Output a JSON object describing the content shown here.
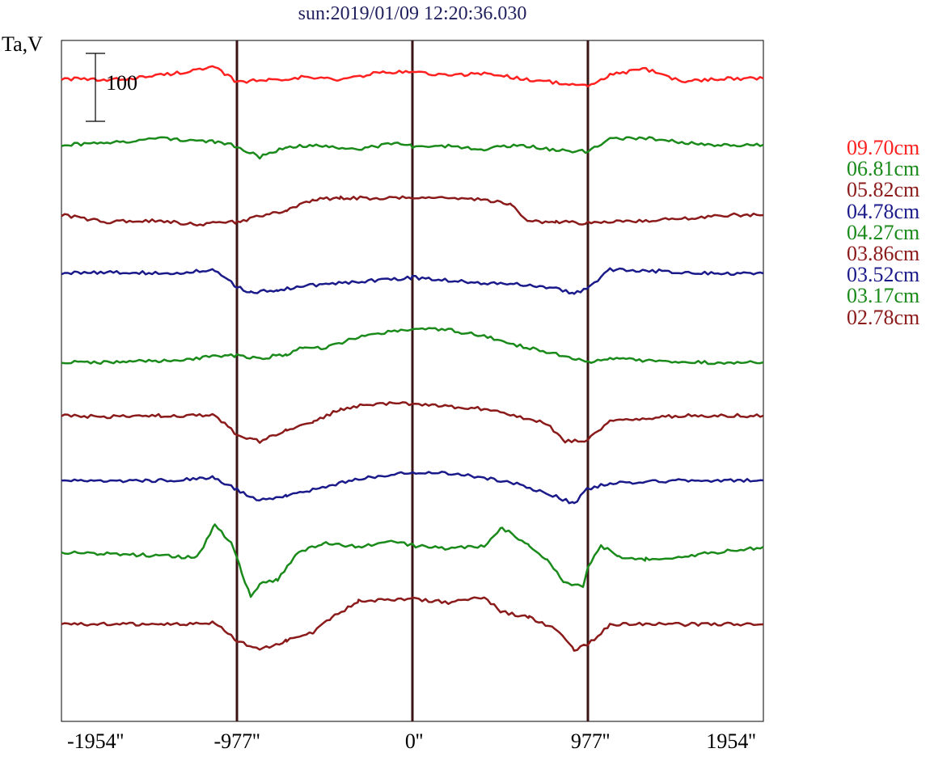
{
  "title": "sun:2019/01/09 12:20:36.030",
  "chart_data": {
    "type": "line",
    "title": "sun:2019/01/09 12:20:36.030",
    "ylabel": "Ta,V",
    "xlabel": "",
    "scale_bar_label": "100",
    "x_ticks": [
      "-1954''",
      "-977''",
      "0''",
      "977''",
      "1954''"
    ],
    "x_tick_values": [
      -1954,
      -977,
      0,
      977,
      1954
    ],
    "xlim": [
      -1954,
      1954
    ],
    "vertical_markers": [
      -977,
      0,
      977
    ],
    "grid": false,
    "legend_position": "right",
    "series": [
      {
        "name": "09.70cm",
        "color": "#ff2020",
        "x": [
          -1954,
          -1700,
          -1400,
          -1100,
          -977,
          -800,
          -600,
          -400,
          -200,
          0,
          200,
          400,
          600,
          800,
          977,
          1100,
          1300,
          1500,
          1700,
          1954
        ],
        "values": [
          0,
          -3,
          5,
          16,
          -5,
          -2,
          2,
          -2,
          8,
          10,
          4,
          8,
          0,
          -6,
          -12,
          5,
          14,
          -5,
          0,
          0
        ]
      },
      {
        "name": "06.81cm",
        "color": "#1a8a1a",
        "x": [
          -1954,
          -1700,
          -1400,
          -1100,
          -977,
          -850,
          -700,
          -500,
          -300,
          -100,
          0,
          200,
          400,
          600,
          800,
          977,
          1100,
          1300,
          1500,
          1700,
          1954
        ],
        "values": [
          0,
          2,
          10,
          4,
          -2,
          -18,
          -2,
          -2,
          -6,
          2,
          -2,
          -2,
          -6,
          0,
          -8,
          -10,
          8,
          10,
          4,
          0,
          0
        ]
      },
      {
        "name": "05.82cm",
        "color": "#8b1a1a",
        "x": [
          -1954,
          -1700,
          -1400,
          -1200,
          -977,
          -850,
          -700,
          -550,
          -400,
          -200,
          0,
          200,
          400,
          550,
          650,
          800,
          977,
          1100,
          1300,
          1500,
          1700,
          1954
        ],
        "values": [
          0,
          -10,
          -8,
          -14,
          -10,
          -2,
          8,
          22,
          26,
          24,
          26,
          26,
          22,
          16,
          -10,
          -10,
          -12,
          -10,
          -8,
          -6,
          0,
          0
        ]
      },
      {
        "name": "04.78cm",
        "color": "#1a1a8a",
        "x": [
          -1954,
          -1700,
          -1400,
          -1100,
          -977,
          -900,
          -750,
          -500,
          -300,
          -100,
          0,
          200,
          400,
          600,
          800,
          900,
          977,
          1100,
          1300,
          1500,
          1700,
          1954
        ],
        "values": [
          0,
          2,
          0,
          4,
          -20,
          -28,
          -24,
          -16,
          -12,
          -8,
          -6,
          -10,
          -14,
          -16,
          -22,
          -30,
          -22,
          6,
          4,
          2,
          0,
          0
        ]
      },
      {
        "name": "04.27cm",
        "color": "#1a8a1a",
        "x": [
          -1954,
          -1700,
          -1400,
          -1100,
          -977,
          -850,
          -700,
          -600,
          -500,
          -300,
          -100,
          0,
          200,
          400,
          600,
          800,
          977,
          1100,
          1300,
          1500,
          1700,
          1954
        ],
        "values": [
          0,
          0,
          2,
          8,
          10,
          6,
          12,
          24,
          20,
          38,
          46,
          48,
          48,
          38,
          24,
          12,
          0,
          6,
          2,
          0,
          0,
          0
        ]
      },
      {
        "name": "03.86cm",
        "color": "#8b1a1a",
        "x": [
          -1954,
          -1700,
          -1400,
          -1100,
          -977,
          -850,
          -700,
          -550,
          -400,
          -200,
          0,
          200,
          400,
          600,
          750,
          850,
          977,
          1100,
          1300,
          1500,
          1700,
          1954
        ],
        "values": [
          0,
          -2,
          0,
          0,
          -28,
          -38,
          -20,
          -10,
          10,
          18,
          18,
          14,
          10,
          -2,
          -12,
          -38,
          -36,
          -8,
          -4,
          0,
          0,
          0
        ]
      },
      {
        "name": "03.52cm",
        "color": "#1a1a8a",
        "x": [
          -1954,
          -1700,
          -1400,
          -1100,
          -977,
          -850,
          -700,
          -500,
          -300,
          -100,
          0,
          200,
          400,
          600,
          800,
          900,
          977,
          1100,
          1300,
          1500,
          1700,
          1954
        ],
        "values": [
          0,
          -2,
          0,
          4,
          -14,
          -30,
          -22,
          -10,
          2,
          10,
          12,
          10,
          4,
          -6,
          -24,
          -34,
          -12,
          -4,
          -2,
          0,
          0,
          0
        ]
      },
      {
        "name": "03.17cm",
        "color": "#1a8a1a",
        "x": [
          -1954,
          -1700,
          -1500,
          -1200,
          -1100,
          -1000,
          -950,
          -900,
          -850,
          -750,
          -650,
          -500,
          -300,
          -100,
          0,
          200,
          400,
          500,
          650,
          750,
          850,
          950,
          977,
          1050,
          1150,
          1300,
          1500,
          1700,
          1954
        ],
        "values": [
          0,
          -2,
          -4,
          -8,
          40,
          10,
          -30,
          -66,
          -46,
          -40,
          -4,
          14,
          8,
          18,
          10,
          6,
          10,
          36,
          10,
          -10,
          -46,
          -50,
          -20,
          10,
          -6,
          -10,
          -6,
          0,
          8
        ]
      },
      {
        "name": "02.78cm",
        "color": "#8b1a1a",
        "x": [
          -1954,
          -1700,
          -1400,
          -1100,
          -977,
          -850,
          -700,
          -550,
          -450,
          -300,
          -100,
          0,
          200,
          400,
          500,
          650,
          800,
          900,
          977,
          1100,
          1300,
          1500,
          1700,
          1954
        ],
        "values": [
          0,
          0,
          0,
          2,
          -24,
          -38,
          -24,
          -12,
          10,
          34,
          36,
          38,
          32,
          40,
          18,
          10,
          -8,
          -38,
          -30,
          0,
          0,
          0,
          0,
          0
        ]
      }
    ]
  }
}
